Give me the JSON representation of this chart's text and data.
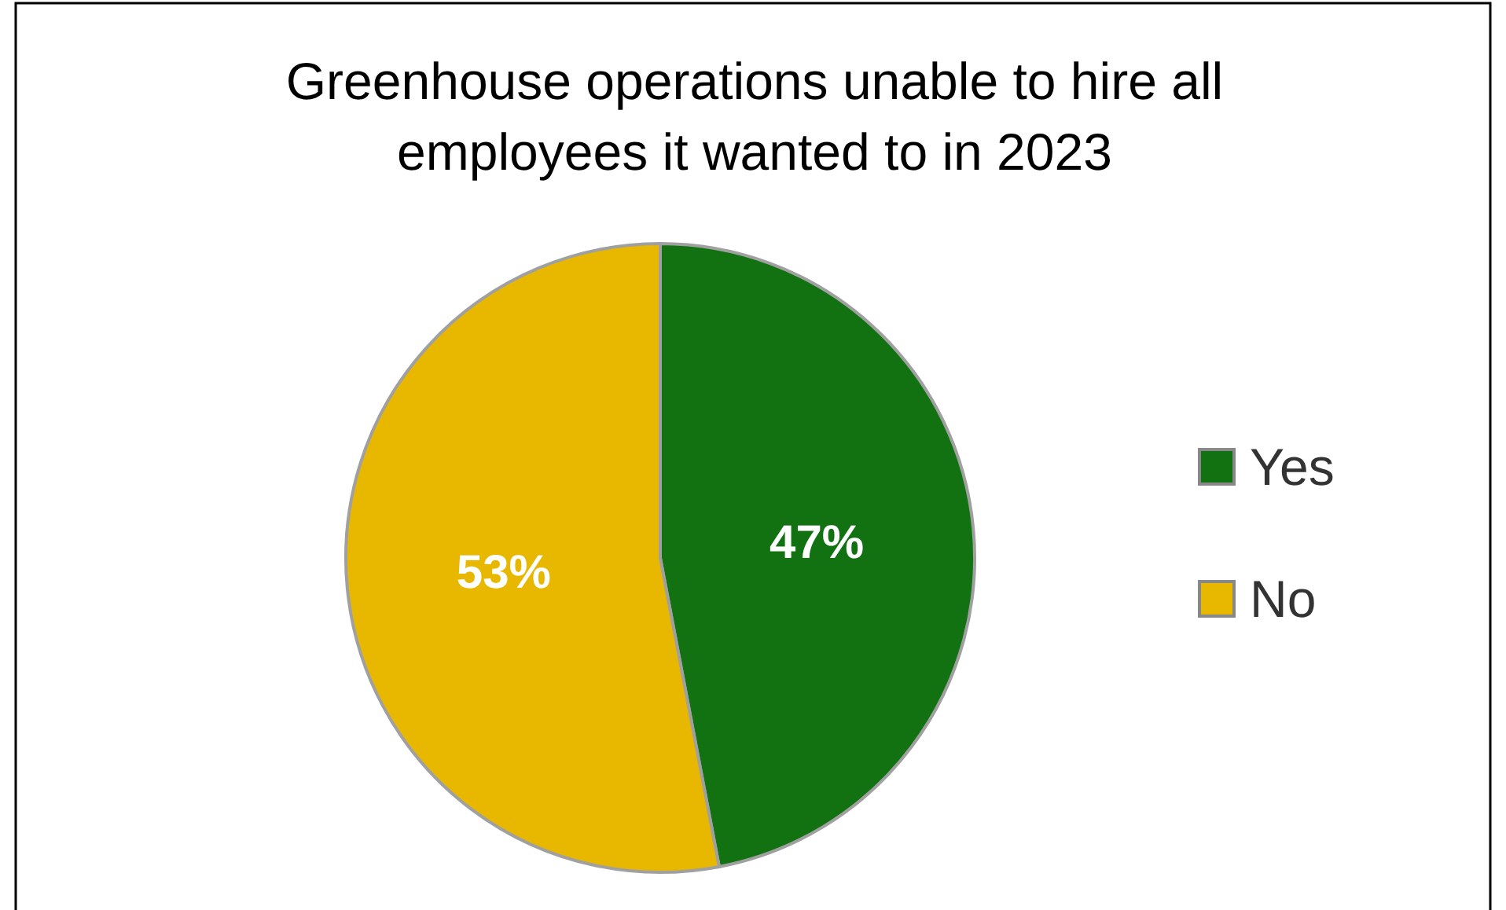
{
  "chart_data": {
    "type": "pie",
    "title": "Greenhouse operations unable to hire all employees it wanted to in 2023",
    "categories": [
      "Yes",
      "No"
    ],
    "values": [
      47,
      53
    ],
    "colors": [
      "#127212",
      "#e8b800"
    ],
    "value_labels": [
      "47%",
      "53%"
    ],
    "legend": "right"
  }
}
